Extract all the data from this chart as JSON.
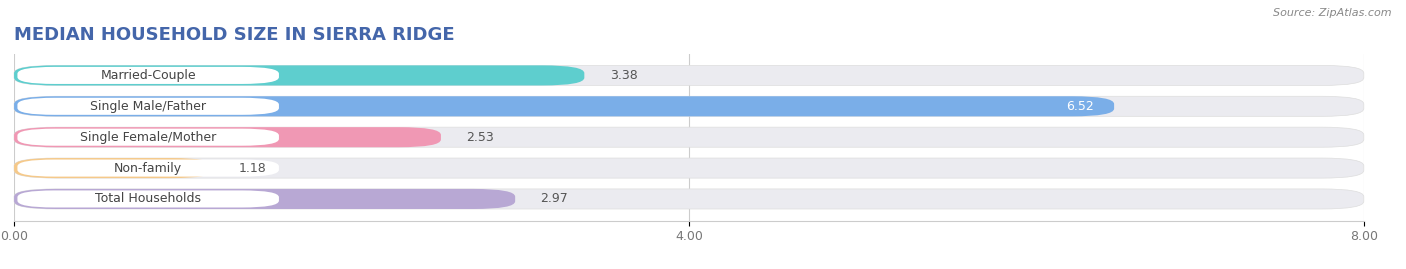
{
  "title": "MEDIAN HOUSEHOLD SIZE IN SIERRA RIDGE",
  "source": "Source: ZipAtlas.com",
  "categories": [
    "Married-Couple",
    "Single Male/Father",
    "Single Female/Mother",
    "Non-family",
    "Total Households"
  ],
  "values": [
    3.38,
    6.52,
    2.53,
    1.18,
    2.97
  ],
  "bar_colors": [
    "#5ecece",
    "#7aaee8",
    "#f098b4",
    "#f5c98a",
    "#b8a8d4"
  ],
  "label_pill_colors": [
    "#5ecece",
    "#7aaee8",
    "#f098b4",
    "#f5c98a",
    "#b8a8d4"
  ],
  "xlim": [
    0,
    8.0
  ],
  "xticks": [
    0.0,
    4.0,
    8.0
  ],
  "xticklabels": [
    "0.00",
    "4.00",
    "8.00"
  ],
  "background_color": "#ffffff",
  "bar_bg_color": "#ebebf0",
  "title_fontsize": 13,
  "label_fontsize": 9,
  "value_fontsize": 9,
  "bar_height": 0.65,
  "bar_gap": 0.35
}
